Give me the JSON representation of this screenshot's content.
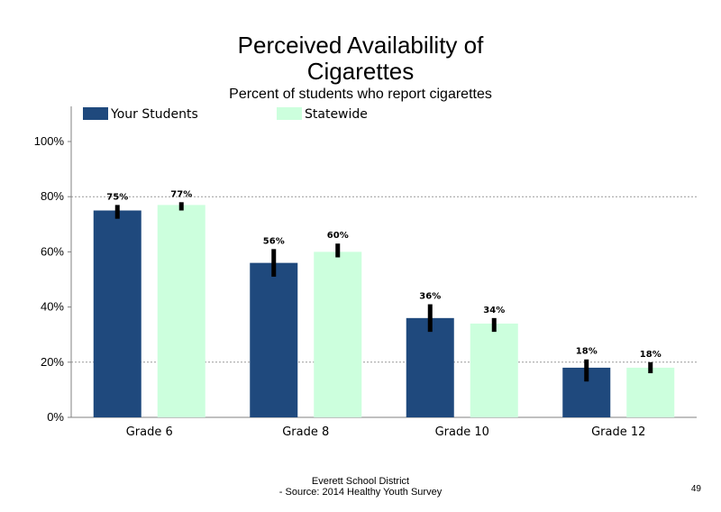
{
  "title_line1": "Perceived Availability of",
  "title_line2": "Cigarettes",
  "subtitle": "Percent of students who report cigarettes",
  "footer_line1": "Everett School District",
  "footer_line2": "- Source: 2014 Healthy  Youth Survey",
  "page_number": "49",
  "chart_data": {
    "type": "bar",
    "categories": [
      "Grade 6",
      "Grade 8",
      "Grade 10",
      "Grade 12"
    ],
    "series": [
      {
        "name": "Your Students",
        "color": "#1f497d",
        "values": [
          75,
          56,
          36,
          18
        ],
        "labels": [
          "75%",
          "56%",
          "36%",
          "18%"
        ],
        "error_low": [
          72,
          51,
          31,
          13
        ],
        "error_high": [
          77,
          61,
          41,
          21
        ]
      },
      {
        "name": "Statewide",
        "color": "#ccffdd",
        "values": [
          77,
          60,
          34,
          18
        ],
        "labels": [
          "77%",
          "60%",
          "34%",
          "18%"
        ],
        "error_low": [
          75,
          58,
          31,
          16
        ],
        "error_high": [
          78,
          63,
          36,
          20
        ]
      }
    ],
    "yticks": [
      "0%",
      "20%",
      "40%",
      "60%",
      "80%",
      "100%"
    ],
    "ylim": [
      0,
      100
    ],
    "grid": "dotted at 20% and 80%",
    "legend_position": "top"
  }
}
